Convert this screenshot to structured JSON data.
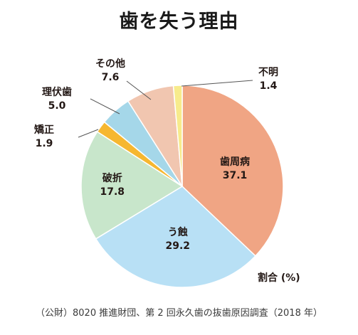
{
  "title": "歯を失う理由",
  "unit_label": "割合 (%)",
  "source": "（公財）8020 推進財団、第 2 回永久歯の抜歯原因調査（2018 年）",
  "chart_data": {
    "type": "pie",
    "title": "歯を失う理由",
    "unit": "%",
    "start": "12 o'clock",
    "direction": "clockwise",
    "slices": [
      {
        "label": "歯周病",
        "value": 37.1,
        "color": "#f0a584",
        "label_position": "inside"
      },
      {
        "label": "う蝕",
        "value": 29.2,
        "color": "#b8e0f5",
        "label_position": "inside"
      },
      {
        "label": "破折",
        "value": 17.8,
        "color": "#c8e6cb",
        "label_position": "inside"
      },
      {
        "label": "矯正",
        "value": 1.9,
        "color": "#f6b730",
        "label_position": "outside"
      },
      {
        "label": "理伏歯",
        "value": 5.0,
        "color": "#a5d7e9",
        "label_position": "outside"
      },
      {
        "label": "その他",
        "value": 7.6,
        "color": "#f1c6b0",
        "label_position": "outside"
      },
      {
        "label": "不明",
        "value": 1.4,
        "color": "#f7eb8c",
        "label_position": "outside"
      }
    ]
  }
}
